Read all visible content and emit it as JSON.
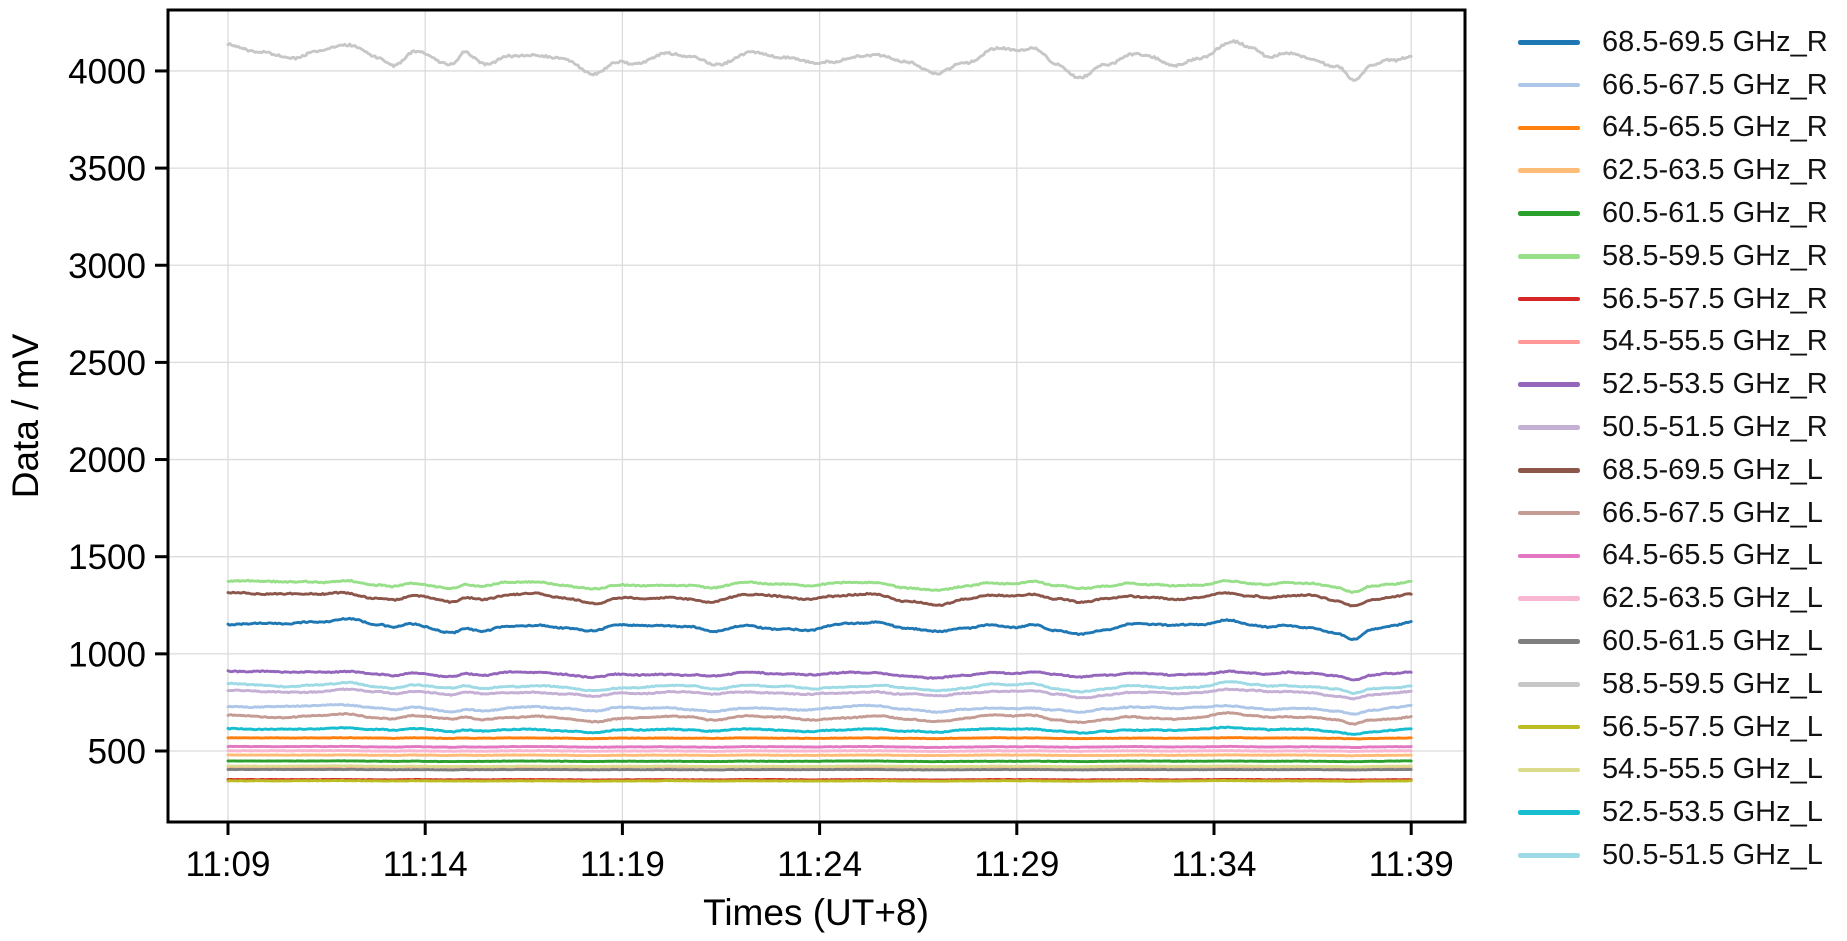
{
  "chart_data": {
    "type": "line",
    "title": "",
    "xlabel": "Times (UT+8)",
    "ylabel": "Data / mV",
    "x_tick_labels": [
      "11:09",
      "11:14",
      "11:19",
      "11:24",
      "11:29",
      "11:34",
      "11:39"
    ],
    "x_tick_minutes": [
      0,
      5,
      10,
      15,
      20,
      25,
      30
    ],
    "y_ticks": [
      500,
      1000,
      1500,
      2000,
      2500,
      3000,
      3500,
      4000
    ],
    "ylim": [
      140,
      4315
    ],
    "xlim_minutes": [
      -1.52,
      31.37
    ],
    "time_start_label": "11:09",
    "time_end_label": "11:39",
    "time_span_minutes": 30,
    "grid": true,
    "grid_color": "#dcdcdc",
    "spine_color": "#000000",
    "background": "#ffffff",
    "legend_position": "right-outside",
    "common_pattern": [
      [
        0,
        1.0
      ],
      [
        0.8,
        0.77
      ],
      [
        1.6,
        0.62
      ],
      [
        2.2,
        0.92
      ],
      [
        3.0,
        1.38
      ],
      [
        3.8,
        0.31
      ],
      [
        4.2,
        -0.22
      ],
      [
        4.7,
        0.6
      ],
      [
        5.7,
        -0.62
      ],
      [
        6.0,
        0.22
      ],
      [
        6.5,
        -0.4
      ],
      [
        7.1,
        0.38
      ],
      [
        7.8,
        0.62
      ],
      [
        8.5,
        0.15
      ],
      [
        9.3,
        -0.78
      ],
      [
        9.9,
        0.22
      ],
      [
        10.5,
        0.08
      ],
      [
        11.1,
        0.43
      ],
      [
        11.7,
        0.15
      ],
      [
        12.3,
        -0.55
      ],
      [
        13.2,
        0.51
      ],
      [
        14.0,
        0.15
      ],
      [
        14.8,
        -0.2
      ],
      [
        15.3,
        0.25
      ],
      [
        15.9,
        0.63
      ],
      [
        16.4,
        0.82
      ],
      [
        17.2,
        -0.15
      ],
      [
        18.0,
        -0.95
      ],
      [
        18.7,
        -0.15
      ],
      [
        19.4,
        0.63
      ],
      [
        20.0,
        0.46
      ],
      [
        20.4,
        0.77
      ],
      [
        21.0,
        -0.31
      ],
      [
        21.6,
        -1.1
      ],
      [
        22.3,
        -0.15
      ],
      [
        22.9,
        0.63
      ],
      [
        23.4,
        0.46
      ],
      [
        24.0,
        -0.02
      ],
      [
        24.6,
        0.31
      ],
      [
        25.4,
        1.3
      ],
      [
        26.0,
        0.62
      ],
      [
        26.4,
        0.1
      ],
      [
        26.8,
        0.43
      ],
      [
        27.4,
        0.2
      ],
      [
        28.1,
        -0.6
      ],
      [
        28.55,
        -1.62
      ],
      [
        29.0,
        -0.3
      ],
      [
        29.5,
        0.23
      ],
      [
        30,
        0.77
      ]
    ],
    "series": [
      {
        "name": "68.5-69.5 GHz_R",
        "color": "#1f77b4",
        "mean_mV": 1134,
        "wiggle_amp_mV": 30,
        "noise_mV": 3.2
      },
      {
        "name": "66.5-67.5 GHz_R",
        "color": "#aec7e8",
        "mean_mV": 716,
        "wiggle_amp_mV": 15,
        "noise_mV": 2.6
      },
      {
        "name": "64.5-65.5 GHz_R",
        "color": "#ff7f0e",
        "mean_mV": 566,
        "wiggle_amp_mV": 2,
        "noise_mV": 1.1
      },
      {
        "name": "62.5-63.5 GHz_R",
        "color": "#ffbb78",
        "mean_mV": 478,
        "wiggle_amp_mV": 1.5,
        "noise_mV": 1.0
      },
      {
        "name": "60.5-61.5 GHz_R",
        "color": "#2ca02c",
        "mean_mV": 447,
        "wiggle_amp_mV": 1.5,
        "noise_mV": 1.0
      },
      {
        "name": "58.5-59.5 GHz_R",
        "color": "#98df8a",
        "mean_mV": 1352,
        "wiggle_amp_mV": 22,
        "noise_mV": 3.2
      },
      {
        "name": "56.5-57.5 GHz_R",
        "color": "#d62728",
        "mean_mV": 352,
        "wiggle_amp_mV": 1,
        "noise_mV": 0.9
      },
      {
        "name": "54.5-55.5 GHz_R",
        "color": "#ff9896",
        "mean_mV": 419,
        "wiggle_amp_mV": 1,
        "noise_mV": 0.9
      },
      {
        "name": "52.5-53.5 GHz_R",
        "color": "#9467bd",
        "mean_mV": 893,
        "wiggle_amp_mV": 16,
        "noise_mV": 2.8
      },
      {
        "name": "50.5-51.5 GHz_R",
        "color": "#c5b0d5",
        "mean_mV": 796,
        "wiggle_amp_mV": 16,
        "noise_mV": 2.6
      },
      {
        "name": "68.5-69.5 GHz_L",
        "color": "#8c564b",
        "mean_mV": 1285,
        "wiggle_amp_mV": 27,
        "noise_mV": 3.2
      },
      {
        "name": "66.5-67.5 GHz_L",
        "color": "#c49c94",
        "mean_mV": 668,
        "wiggle_amp_mV": 17,
        "noise_mV": 2.6
      },
      {
        "name": "64.5-65.5 GHz_L",
        "color": "#e377c2",
        "mean_mV": 521,
        "wiggle_amp_mV": 2,
        "noise_mV": 1.1
      },
      {
        "name": "62.5-63.5 GHz_L",
        "color": "#f7b6d2",
        "mean_mV": 500,
        "wiggle_amp_mV": 1.5,
        "noise_mV": 1.0
      },
      {
        "name": "60.5-61.5 GHz_L",
        "color": "#7f7f7f",
        "mean_mV": 404,
        "wiggle_amp_mV": 1,
        "noise_mV": 0.9
      },
      {
        "name": "58.5-59.5 GHz_L",
        "color": "#c7c7c7",
        "mean_mV": 4052,
        "wiggle_amp_mV": 65,
        "noise_mV": 5.5
      },
      {
        "name": "56.5-57.5 GHz_L",
        "color": "#bcbd22",
        "mean_mV": 346,
        "wiggle_amp_mV": 1,
        "noise_mV": 0.9
      },
      {
        "name": "54.5-55.5 GHz_L",
        "color": "#dbdb8d",
        "mean_mV": 421,
        "wiggle_amp_mV": 1.5,
        "noise_mV": 1.0
      },
      {
        "name": "52.5-53.5 GHz_L",
        "color": "#17becf",
        "mean_mV": 606,
        "wiggle_amp_mV": 11,
        "noise_mV": 2.2
      },
      {
        "name": "50.5-51.5 GHz_L",
        "color": "#9edae5",
        "mean_mV": 827,
        "wiggle_amp_mV": 18,
        "noise_mV": 2.6
      }
    ]
  }
}
